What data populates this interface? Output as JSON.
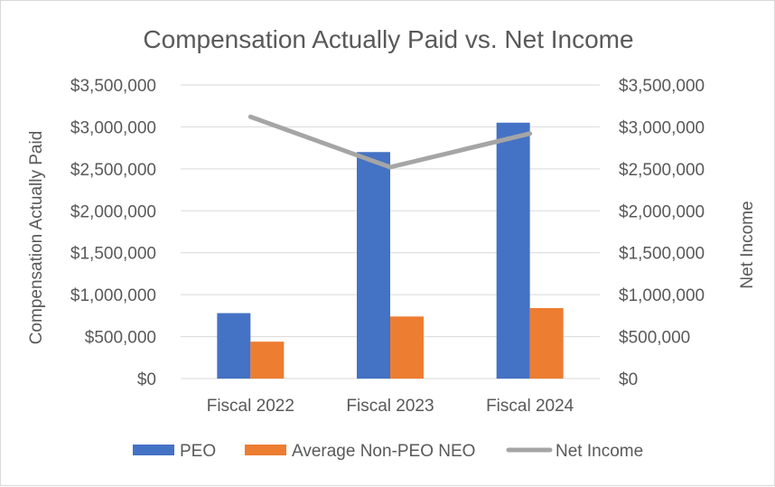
{
  "chart_data": {
    "type": "bar",
    "title": "Compensation Actually Paid vs. Net Income",
    "categories": [
      "Fiscal 2022",
      "Fiscal 2023",
      "Fiscal 2024"
    ],
    "series": [
      {
        "name": "PEO",
        "kind": "bar",
        "axis": "left",
        "color": "#4472c4",
        "values": [
          780000,
          2700000,
          3050000
        ]
      },
      {
        "name": "Average Non-PEO NEO",
        "kind": "bar",
        "axis": "left",
        "color": "#ed7d31",
        "values": [
          440000,
          740000,
          840000
        ]
      },
      {
        "name": "Net Income",
        "kind": "line",
        "axis": "right",
        "color": "#a5a5a5",
        "values": [
          3120000,
          2520000,
          2920000
        ]
      }
    ],
    "ylabel": "Compensation Actually Paid",
    "y2label": "Net Income",
    "ylim": [
      0,
      3500000
    ],
    "y2lim": [
      0,
      3500000
    ],
    "yticks": [
      "$0",
      "$500,000",
      "$1,000,000",
      "$1,500,000",
      "$2,000,000",
      "$2,500,000",
      "$3,000,000",
      "$3,500,000"
    ],
    "y2ticks": [
      "$0",
      "$500,000",
      "$1,000,000",
      "$1,500,000",
      "$2,000,000",
      "$2,500,000",
      "$3,000,000",
      "$3,500,000"
    ],
    "grid": true,
    "legend": "bottom",
    "gridline_color": "#d9d9d9"
  }
}
